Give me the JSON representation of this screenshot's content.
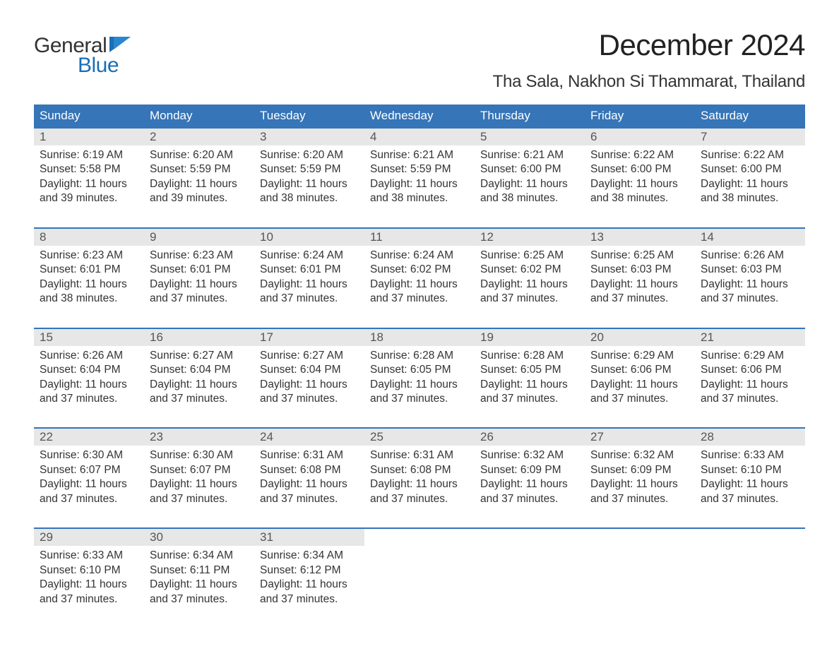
{
  "brand": {
    "word1": "General",
    "word2": "Blue",
    "word1_color": "#333333",
    "word2_color": "#1a6fb5",
    "flag_color": "#1a6fb5",
    "font_size_pt": 30
  },
  "header": {
    "month_title": "December 2024",
    "location": "Tha Sala, Nakhon Si Thammarat, Thailand",
    "title_fontsize_pt": 42,
    "title_color": "#222222",
    "location_fontsize_pt": 24,
    "location_color": "#333333"
  },
  "calendar": {
    "day_names": [
      "Sunday",
      "Monday",
      "Tuesday",
      "Wednesday",
      "Thursday",
      "Friday",
      "Saturday"
    ],
    "header_bg": "#3575b8",
    "header_text_color": "#ffffff",
    "week_divider_color": "#3575b8",
    "daynum_band_bg": "#e7e7e7",
    "daynum_color": "#555555",
    "body_text_color": "#333333",
    "body_fontsize_pt": 15.5,
    "weeks": [
      [
        {
          "day": "1",
          "sunrise": "Sunrise: 6:19 AM",
          "sunset": "Sunset: 5:58 PM",
          "dl1": "Daylight: 11 hours",
          "dl2": "and 39 minutes."
        },
        {
          "day": "2",
          "sunrise": "Sunrise: 6:20 AM",
          "sunset": "Sunset: 5:59 PM",
          "dl1": "Daylight: 11 hours",
          "dl2": "and 39 minutes."
        },
        {
          "day": "3",
          "sunrise": "Sunrise: 6:20 AM",
          "sunset": "Sunset: 5:59 PM",
          "dl1": "Daylight: 11 hours",
          "dl2": "and 38 minutes."
        },
        {
          "day": "4",
          "sunrise": "Sunrise: 6:21 AM",
          "sunset": "Sunset: 5:59 PM",
          "dl1": "Daylight: 11 hours",
          "dl2": "and 38 minutes."
        },
        {
          "day": "5",
          "sunrise": "Sunrise: 6:21 AM",
          "sunset": "Sunset: 6:00 PM",
          "dl1": "Daylight: 11 hours",
          "dl2": "and 38 minutes."
        },
        {
          "day": "6",
          "sunrise": "Sunrise: 6:22 AM",
          "sunset": "Sunset: 6:00 PM",
          "dl1": "Daylight: 11 hours",
          "dl2": "and 38 minutes."
        },
        {
          "day": "7",
          "sunrise": "Sunrise: 6:22 AM",
          "sunset": "Sunset: 6:00 PM",
          "dl1": "Daylight: 11 hours",
          "dl2": "and 38 minutes."
        }
      ],
      [
        {
          "day": "8",
          "sunrise": "Sunrise: 6:23 AM",
          "sunset": "Sunset: 6:01 PM",
          "dl1": "Daylight: 11 hours",
          "dl2": "and 38 minutes."
        },
        {
          "day": "9",
          "sunrise": "Sunrise: 6:23 AM",
          "sunset": "Sunset: 6:01 PM",
          "dl1": "Daylight: 11 hours",
          "dl2": "and 37 minutes."
        },
        {
          "day": "10",
          "sunrise": "Sunrise: 6:24 AM",
          "sunset": "Sunset: 6:01 PM",
          "dl1": "Daylight: 11 hours",
          "dl2": "and 37 minutes."
        },
        {
          "day": "11",
          "sunrise": "Sunrise: 6:24 AM",
          "sunset": "Sunset: 6:02 PM",
          "dl1": "Daylight: 11 hours",
          "dl2": "and 37 minutes."
        },
        {
          "day": "12",
          "sunrise": "Sunrise: 6:25 AM",
          "sunset": "Sunset: 6:02 PM",
          "dl1": "Daylight: 11 hours",
          "dl2": "and 37 minutes."
        },
        {
          "day": "13",
          "sunrise": "Sunrise: 6:25 AM",
          "sunset": "Sunset: 6:03 PM",
          "dl1": "Daylight: 11 hours",
          "dl2": "and 37 minutes."
        },
        {
          "day": "14",
          "sunrise": "Sunrise: 6:26 AM",
          "sunset": "Sunset: 6:03 PM",
          "dl1": "Daylight: 11 hours",
          "dl2": "and 37 minutes."
        }
      ],
      [
        {
          "day": "15",
          "sunrise": "Sunrise: 6:26 AM",
          "sunset": "Sunset: 6:04 PM",
          "dl1": "Daylight: 11 hours",
          "dl2": "and 37 minutes."
        },
        {
          "day": "16",
          "sunrise": "Sunrise: 6:27 AM",
          "sunset": "Sunset: 6:04 PM",
          "dl1": "Daylight: 11 hours",
          "dl2": "and 37 minutes."
        },
        {
          "day": "17",
          "sunrise": "Sunrise: 6:27 AM",
          "sunset": "Sunset: 6:04 PM",
          "dl1": "Daylight: 11 hours",
          "dl2": "and 37 minutes."
        },
        {
          "day": "18",
          "sunrise": "Sunrise: 6:28 AM",
          "sunset": "Sunset: 6:05 PM",
          "dl1": "Daylight: 11 hours",
          "dl2": "and 37 minutes."
        },
        {
          "day": "19",
          "sunrise": "Sunrise: 6:28 AM",
          "sunset": "Sunset: 6:05 PM",
          "dl1": "Daylight: 11 hours",
          "dl2": "and 37 minutes."
        },
        {
          "day": "20",
          "sunrise": "Sunrise: 6:29 AM",
          "sunset": "Sunset: 6:06 PM",
          "dl1": "Daylight: 11 hours",
          "dl2": "and 37 minutes."
        },
        {
          "day": "21",
          "sunrise": "Sunrise: 6:29 AM",
          "sunset": "Sunset: 6:06 PM",
          "dl1": "Daylight: 11 hours",
          "dl2": "and 37 minutes."
        }
      ],
      [
        {
          "day": "22",
          "sunrise": "Sunrise: 6:30 AM",
          "sunset": "Sunset: 6:07 PM",
          "dl1": "Daylight: 11 hours",
          "dl2": "and 37 minutes."
        },
        {
          "day": "23",
          "sunrise": "Sunrise: 6:30 AM",
          "sunset": "Sunset: 6:07 PM",
          "dl1": "Daylight: 11 hours",
          "dl2": "and 37 minutes."
        },
        {
          "day": "24",
          "sunrise": "Sunrise: 6:31 AM",
          "sunset": "Sunset: 6:08 PM",
          "dl1": "Daylight: 11 hours",
          "dl2": "and 37 minutes."
        },
        {
          "day": "25",
          "sunrise": "Sunrise: 6:31 AM",
          "sunset": "Sunset: 6:08 PM",
          "dl1": "Daylight: 11 hours",
          "dl2": "and 37 minutes."
        },
        {
          "day": "26",
          "sunrise": "Sunrise: 6:32 AM",
          "sunset": "Sunset: 6:09 PM",
          "dl1": "Daylight: 11 hours",
          "dl2": "and 37 minutes."
        },
        {
          "day": "27",
          "sunrise": "Sunrise: 6:32 AM",
          "sunset": "Sunset: 6:09 PM",
          "dl1": "Daylight: 11 hours",
          "dl2": "and 37 minutes."
        },
        {
          "day": "28",
          "sunrise": "Sunrise: 6:33 AM",
          "sunset": "Sunset: 6:10 PM",
          "dl1": "Daylight: 11 hours",
          "dl2": "and 37 minutes."
        }
      ],
      [
        {
          "day": "29",
          "sunrise": "Sunrise: 6:33 AM",
          "sunset": "Sunset: 6:10 PM",
          "dl1": "Daylight: 11 hours",
          "dl2": "and 37 minutes."
        },
        {
          "day": "30",
          "sunrise": "Sunrise: 6:34 AM",
          "sunset": "Sunset: 6:11 PM",
          "dl1": "Daylight: 11 hours",
          "dl2": "and 37 minutes."
        },
        {
          "day": "31",
          "sunrise": "Sunrise: 6:34 AM",
          "sunset": "Sunset: 6:12 PM",
          "dl1": "Daylight: 11 hours",
          "dl2": "and 37 minutes."
        },
        {
          "empty": true
        },
        {
          "empty": true
        },
        {
          "empty": true
        },
        {
          "empty": true
        }
      ]
    ]
  }
}
